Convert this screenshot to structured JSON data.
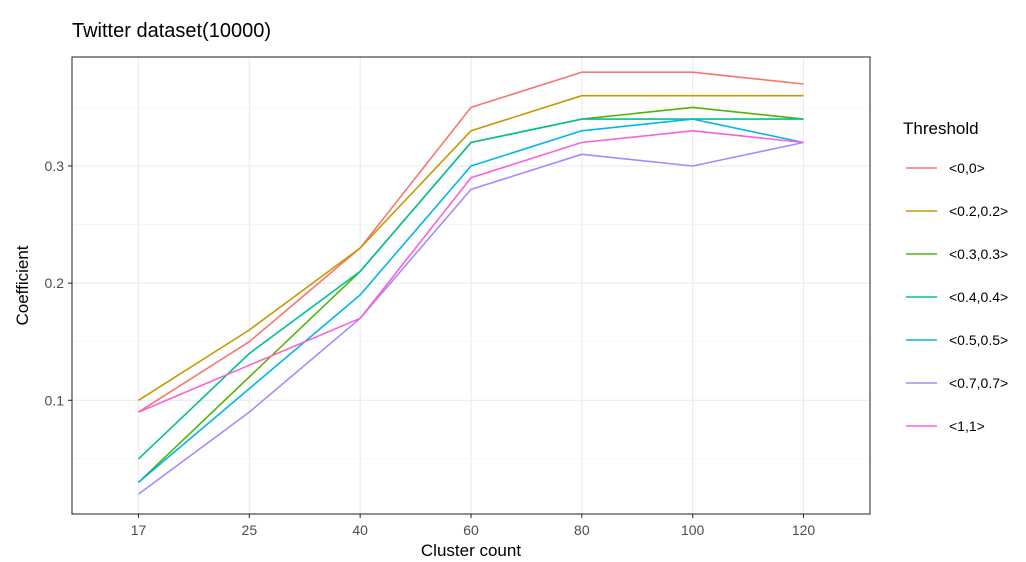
{
  "chart_data": {
    "type": "line",
    "title": "Twitter dataset(10000)",
    "xlabel": "Cluster count",
    "ylabel": "Coefficient",
    "categories": [
      "17",
      "25",
      "40",
      "60",
      "80",
      "100",
      "120"
    ],
    "y_ticks": [
      "0.1",
      "0.2",
      "0.3"
    ],
    "ylim": [
      0.003,
      0.393
    ],
    "grid": true,
    "legend": {
      "title": "Threshold",
      "position": "right"
    },
    "series": [
      {
        "name": "<0,0>",
        "color": "#F8766D",
        "values": [
          0.09,
          0.15,
          0.23,
          0.35,
          0.38,
          0.38,
          0.37
        ]
      },
      {
        "name": "<0.2,0.2>",
        "color": "#C49A00",
        "values": [
          0.1,
          0.16,
          0.23,
          0.33,
          0.36,
          0.36,
          0.36
        ]
      },
      {
        "name": "<0.3,0.3>",
        "color": "#53B400",
        "values": [
          0.03,
          0.12,
          0.21,
          0.32,
          0.34,
          0.35,
          0.34
        ]
      },
      {
        "name": "<0.4,0.4>",
        "color": "#00C094",
        "values": [
          0.05,
          0.14,
          0.21,
          0.32,
          0.34,
          0.34,
          0.34
        ]
      },
      {
        "name": "<0.5,0.5>",
        "color": "#00B6EB",
        "values": [
          0.03,
          0.11,
          0.19,
          0.3,
          0.33,
          0.34,
          0.32
        ]
      },
      {
        "name": "<0.7,0.7>",
        "color": "#A58AFF",
        "values": [
          0.02,
          0.09,
          0.17,
          0.28,
          0.31,
          0.3,
          0.32
        ]
      },
      {
        "name": "<1,1>",
        "color": "#FB61D7",
        "values": [
          0.09,
          0.13,
          0.17,
          0.29,
          0.32,
          0.33,
          0.32
        ]
      }
    ]
  }
}
